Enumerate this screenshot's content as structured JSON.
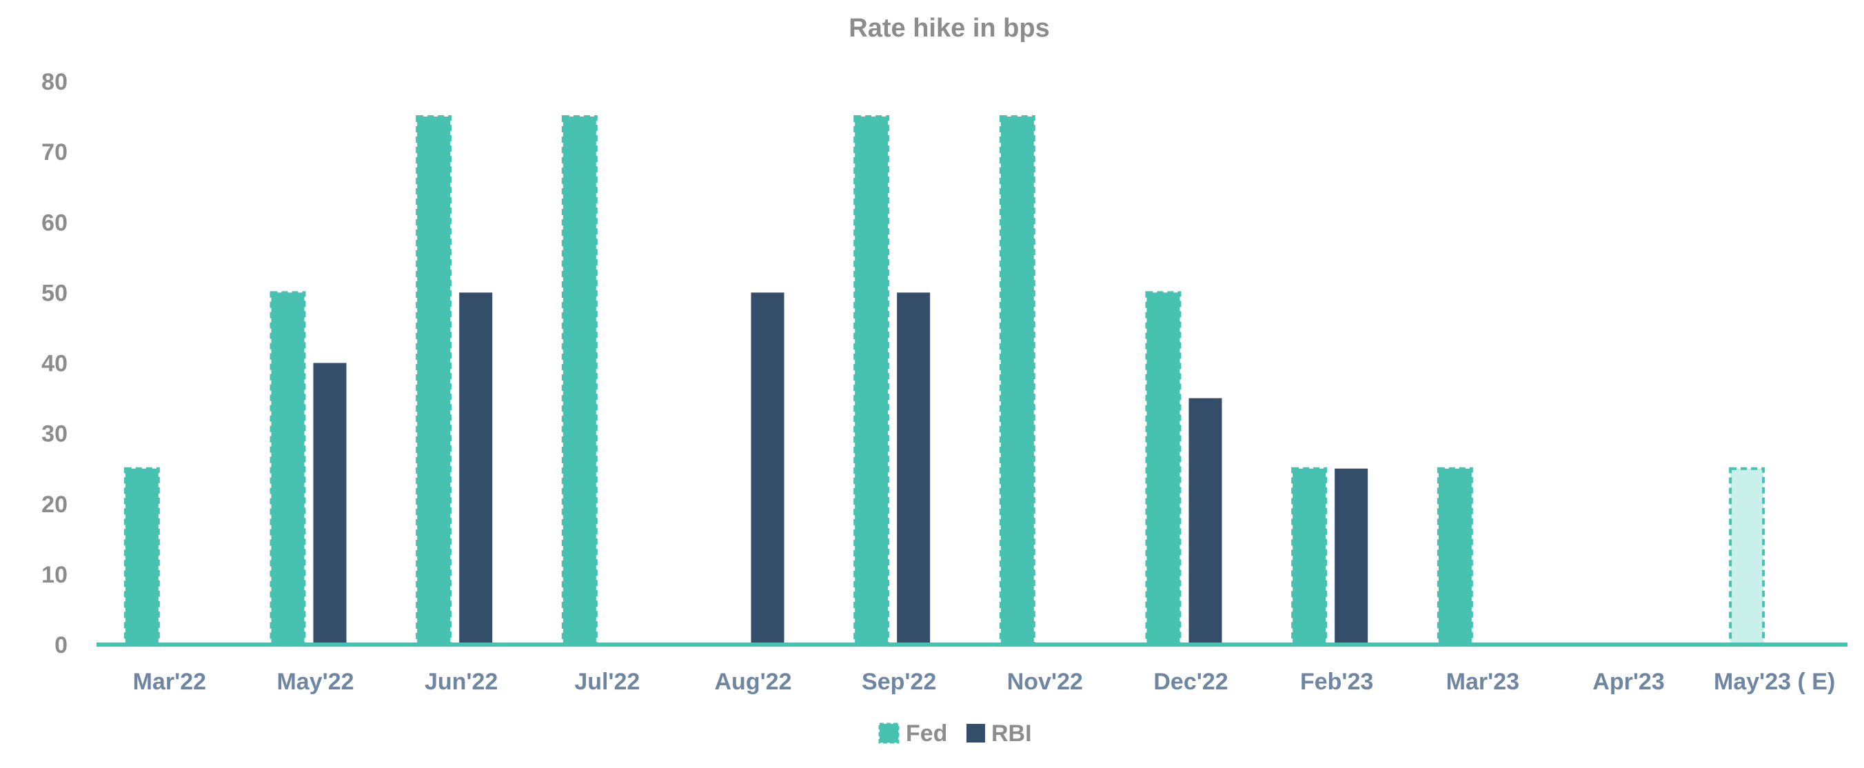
{
  "chart_data": {
    "type": "bar",
    "title": "Rate hike in bps",
    "xlabel": "",
    "ylabel": "",
    "ylim": [
      0,
      80
    ],
    "yticks": [
      "0",
      "10",
      "20",
      "30",
      "40",
      "50",
      "60",
      "70",
      "80"
    ],
    "grid": false,
    "legend_position": "bottom-center",
    "categories": [
      "Mar'22",
      "May'22",
      "Jun'22",
      "Jul'22",
      "Aug'22",
      "Sep'22",
      "Nov'22",
      "Dec'22",
      "Feb'23",
      "Mar'23",
      "Apr'23",
      "May'23 ( E)"
    ],
    "series": [
      {
        "name": "Fed",
        "color": "#47c1b0",
        "values": [
          25,
          50,
          75,
          75,
          null,
          75,
          75,
          50,
          25,
          25,
          null,
          25
        ],
        "estimated_index": 11
      },
      {
        "name": "RBI",
        "color": "#344d69",
        "values": [
          null,
          40,
          50,
          null,
          50,
          50,
          null,
          35,
          25,
          null,
          null,
          null
        ]
      }
    ],
    "estimate_fill_color": "#c9f0ea",
    "axis_line_color": "#47c1b0"
  }
}
